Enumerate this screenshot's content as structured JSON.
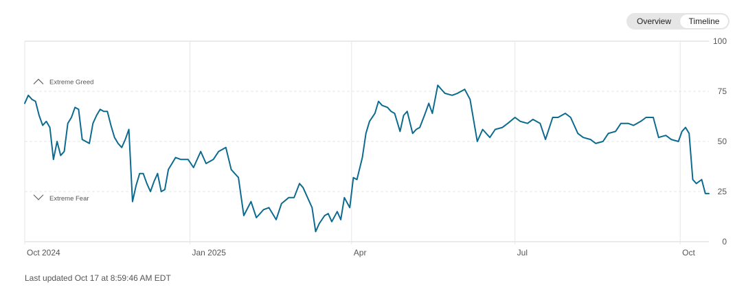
{
  "toggle": {
    "overview_label": "Overview",
    "timeline_label": "Timeline",
    "active": "Timeline"
  },
  "footer": {
    "last_updated": "Last updated Oct 17 at 8:59:46 AM EDT"
  },
  "colors": {
    "line": "#0c6a8f",
    "grid": "#e6e6e6",
    "text": "#555555"
  },
  "chart_data": {
    "type": "line",
    "title": "",
    "xlabel": "",
    "ylabel": "",
    "ylim": [
      0,
      100
    ],
    "y_ticks": [
      0,
      25,
      50,
      75,
      100
    ],
    "grid": true,
    "x_ticks": [
      {
        "label": "Oct 2024",
        "date": "2024-10-01"
      },
      {
        "label": "Jan 2025",
        "date": "2025-01-01"
      },
      {
        "label": "Apr",
        "date": "2025-04-01"
      },
      {
        "label": "Jul",
        "date": "2025-07-01"
      },
      {
        "label": "Oct",
        "date": "2025-10-01"
      }
    ],
    "x_range": [
      "2024-10-01",
      "2025-10-17"
    ],
    "zone_labels": [
      {
        "label": "Extreme Greed",
        "y": 80,
        "icon": "chevron-up-icon"
      },
      {
        "label": "Extreme Fear",
        "y": 22,
        "icon": "chevron-down-icon"
      }
    ],
    "series": [
      {
        "x": [
          "2024-10-01",
          "2024-10-03",
          "2024-10-05",
          "2024-10-07",
          "2024-10-09",
          "2024-10-11",
          "2024-10-13",
          "2024-10-15",
          "2024-10-17",
          "2024-10-19",
          "2024-10-21",
          "2024-10-23",
          "2024-10-25",
          "2024-10-27",
          "2024-10-29",
          "2024-10-31",
          "2024-11-02",
          "2024-11-04",
          "2024-11-06",
          "2024-11-08",
          "2024-11-10",
          "2024-11-12",
          "2024-11-14",
          "2024-11-16",
          "2024-11-18",
          "2024-11-20",
          "2024-11-22",
          "2024-11-24",
          "2024-11-26",
          "2024-11-28",
          "2024-11-30",
          "2024-12-02",
          "2024-12-04",
          "2024-12-06",
          "2024-12-08",
          "2024-12-10",
          "2024-12-12",
          "2024-12-14",
          "2024-12-16",
          "2024-12-18",
          "2024-12-20",
          "2024-12-22",
          "2024-12-24",
          "2024-12-27",
          "2024-12-31",
          "2025-01-03",
          "2025-01-07",
          "2025-01-10",
          "2025-01-14",
          "2025-01-17",
          "2025-01-21",
          "2025-01-24",
          "2025-01-28",
          "2025-01-31",
          "2025-02-04",
          "2025-02-07",
          "2025-02-11",
          "2025-02-14",
          "2025-02-18",
          "2025-02-21",
          "2025-02-25",
          "2025-02-28",
          "2025-03-03",
          "2025-03-05",
          "2025-03-07",
          "2025-03-10",
          "2025-03-12",
          "2025-03-14",
          "2025-03-17",
          "2025-03-19",
          "2025-03-21",
          "2025-03-24",
          "2025-03-26",
          "2025-03-28",
          "2025-03-31",
          "2025-04-02",
          "2025-04-04",
          "2025-04-07",
          "2025-04-09",
          "2025-04-11",
          "2025-04-14",
          "2025-04-16",
          "2025-04-18",
          "2025-04-21",
          "2025-04-23",
          "2025-04-25",
          "2025-04-28",
          "2025-04-30",
          "2025-05-02",
          "2025-05-05",
          "2025-05-07",
          "2025-05-09",
          "2025-05-12",
          "2025-05-14",
          "2025-05-16",
          "2025-05-19",
          "2025-05-21",
          "2025-05-23",
          "2025-05-27",
          "2025-05-30",
          "2025-06-03",
          "2025-06-06",
          "2025-06-10",
          "2025-06-13",
          "2025-06-17",
          "2025-06-20",
          "2025-06-24",
          "2025-06-27",
          "2025-07-01",
          "2025-07-04",
          "2025-07-08",
          "2025-07-11",
          "2025-07-15",
          "2025-07-18",
          "2025-07-22",
          "2025-07-25",
          "2025-07-29",
          "2025-08-01",
          "2025-08-05",
          "2025-08-08",
          "2025-08-12",
          "2025-08-15",
          "2025-08-19",
          "2025-08-22",
          "2025-08-26",
          "2025-08-29",
          "2025-09-02",
          "2025-09-05",
          "2025-09-09",
          "2025-09-12",
          "2025-09-16",
          "2025-09-19",
          "2025-09-23",
          "2025-09-26",
          "2025-09-30",
          "2025-10-02",
          "2025-10-04",
          "2025-10-06",
          "2025-10-08",
          "2025-10-10",
          "2025-10-13",
          "2025-10-15",
          "2025-10-17"
        ],
        "values": [
          69,
          73,
          71,
          70,
          63,
          58,
          60,
          57,
          41,
          50,
          43,
          45,
          59,
          62,
          67,
          66,
          51,
          50,
          49,
          59,
          63,
          66,
          65,
          65,
          58,
          52,
          49,
          47,
          51,
          56,
          20,
          28,
          34,
          34,
          29,
          25,
          30,
          34,
          25,
          26,
          36,
          39,
          42,
          41,
          41,
          37,
          45,
          39,
          41,
          45,
          47,
          36,
          32,
          13,
          20,
          12,
          16,
          17,
          11,
          19,
          22,
          22,
          29,
          27,
          23,
          17,
          5,
          9,
          13,
          14,
          10,
          15,
          11,
          22,
          17,
          32,
          31,
          42,
          54,
          60,
          64,
          70,
          68,
          67,
          65,
          64,
          55,
          63,
          65,
          54,
          56,
          57,
          64,
          69,
          64,
          78,
          76,
          74,
          73,
          74,
          76,
          71,
          50,
          56,
          52,
          56,
          57,
          59,
          62,
          60,
          59,
          61,
          59,
          51,
          62,
          62,
          64,
          62,
          54,
          52,
          51,
          49,
          50,
          54,
          55,
          59,
          59,
          58,
          60,
          62,
          62,
          52,
          53,
          51,
          50,
          55,
          57,
          54,
          31,
          29,
          31,
          24,
          24
        ]
      }
    ]
  }
}
